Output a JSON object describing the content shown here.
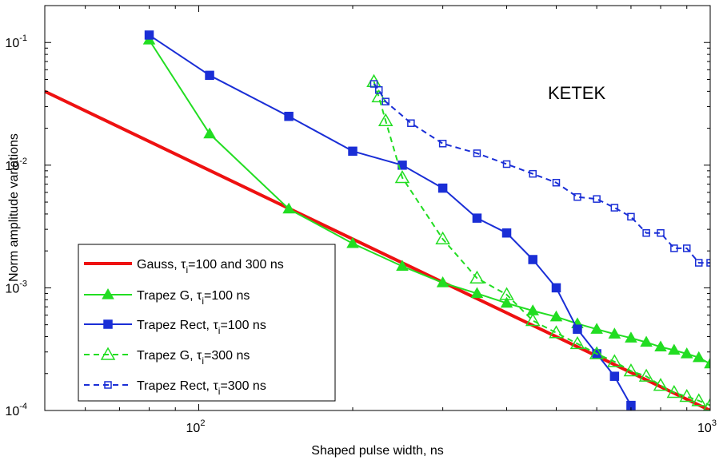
{
  "chart_data": {
    "type": "line",
    "title": "",
    "xlabel": "Shaped pulse width, ns",
    "ylabel": "Norm amplitude variations",
    "xscale": "log",
    "yscale": "log",
    "xlim": [
      50,
      1000
    ],
    "ylim": [
      0.0001,
      0.2
    ],
    "grid": false,
    "annotation": "KETEK",
    "legend_placement": "bottom-left",
    "x_ticks": [
      {
        "base": "10",
        "exp": "2",
        "value": 100
      },
      {
        "base": "10",
        "exp": "3",
        "value": 1000
      }
    ],
    "y_ticks": [
      {
        "base": "10",
        "exp": "-4",
        "value": 0.0001
      },
      {
        "base": "10",
        "exp": "-3",
        "value": 0.001
      },
      {
        "base": "10",
        "exp": "-2",
        "value": 0.01
      },
      {
        "base": "10",
        "exp": "-1",
        "value": 0.1
      }
    ],
    "series": [
      {
        "label_main": "Gauss, τ",
        "label_sub": "i",
        "label_tail": "=100 and 300 ns",
        "color": "#ee1111",
        "linestyle": "solid",
        "marker": "none",
        "linewidth": 4,
        "x": [
          50,
          1000
        ],
        "y": [
          0.04,
          0.0001
        ]
      },
      {
        "label_main": "Trapez G, τ",
        "label_sub": "i",
        "label_tail": "=100 ns",
        "color": "#22dd22",
        "linestyle": "solid",
        "marker": "triangle-filled",
        "linewidth": 2,
        "x": [
          80,
          105,
          150,
          200,
          250,
          300,
          350,
          400,
          450,
          500,
          550,
          600,
          650,
          700,
          750,
          800,
          850,
          900,
          950,
          1000
        ],
        "y": [
          0.105,
          0.018,
          0.0044,
          0.0023,
          0.0015,
          0.0011,
          0.0009,
          0.00075,
          0.00065,
          0.00058,
          0.00051,
          0.00046,
          0.00042,
          0.00039,
          0.00036,
          0.00033,
          0.00031,
          0.00029,
          0.00027,
          0.00024
        ]
      },
      {
        "label_main": "Trapez Rect, τ",
        "label_sub": "i",
        "label_tail": "=100 ns",
        "color": "#1a2ed6",
        "linestyle": "solid",
        "marker": "square-filled",
        "linewidth": 2,
        "x": [
          80,
          105,
          150,
          200,
          250,
          300,
          350,
          400,
          450,
          500,
          550,
          600,
          650,
          700
        ],
        "y": [
          0.115,
          0.054,
          0.025,
          0.013,
          0.01,
          0.0065,
          0.0037,
          0.0028,
          0.0017,
          0.001,
          0.00046,
          0.00029,
          0.00019,
          0.00011
        ]
      },
      {
        "label_main": "Trapez G, τ",
        "label_sub": "i",
        "label_tail": "=300 ns",
        "color": "#22dd22",
        "linestyle": "dashed",
        "marker": "triangle-open",
        "linewidth": 2,
        "x": [
          220,
          225,
          232,
          250,
          300,
          350,
          400,
          450,
          500,
          550,
          600,
          650,
          700,
          750,
          800,
          850,
          900,
          950,
          1000
        ],
        "y": [
          0.048,
          0.036,
          0.023,
          0.0079,
          0.0025,
          0.0012,
          0.00088,
          0.00054,
          0.00043,
          0.00035,
          0.00029,
          0.00025,
          0.00021,
          0.00019,
          0.00016,
          0.00014,
          0.00013,
          0.00012,
          0.00011
        ]
      },
      {
        "label_main": "Trapez Rect, τ",
        "label_sub": "i",
        "label_tail": "=300 ns",
        "color": "#1a2ed6",
        "linestyle": "dashed",
        "marker": "square-open",
        "linewidth": 2,
        "x": [
          220,
          225,
          232,
          260,
          300,
          350,
          400,
          450,
          500,
          550,
          600,
          650,
          700,
          750,
          800,
          850,
          900,
          950,
          1000
        ],
        "y": [
          0.046,
          0.041,
          0.033,
          0.022,
          0.015,
          0.0125,
          0.0102,
          0.0085,
          0.0072,
          0.0055,
          0.0053,
          0.0045,
          0.0038,
          0.0028,
          0.0028,
          0.0021,
          0.0021,
          0.0016,
          0.0016
        ]
      }
    ]
  }
}
